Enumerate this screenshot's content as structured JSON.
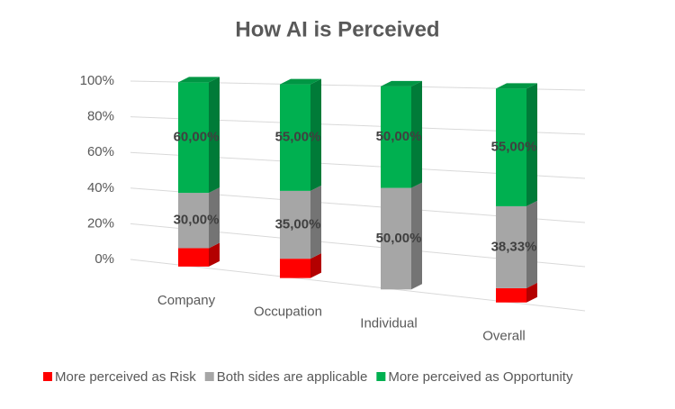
{
  "chart_data": {
    "type": "bar3d_stacked",
    "title": "How AI is Perceived",
    "categories": [
      "Company",
      "Occupation",
      "Individual",
      "Overall"
    ],
    "series": [
      {
        "name": "More perceived as Risk",
        "color": "#ff0000",
        "values": [
          10,
          10,
          0,
          6.67
        ]
      },
      {
        "name": "Both sides are applicable",
        "color": "#a6a6a6",
        "values": [
          30,
          35,
          50,
          38.33
        ],
        "value_labels": [
          "30,00%",
          "35,00%",
          "50,00%",
          "38,33%"
        ]
      },
      {
        "name": "More perceived as Opportunity",
        "color": "#00b050",
        "values": [
          60,
          55,
          50,
          55
        ],
        "value_labels": [
          "60,00%",
          "55,00%",
          "50,00%",
          "55,00%"
        ]
      }
    ],
    "ylim": [
      0,
      100
    ],
    "yticks": [
      {
        "value": 0,
        "label": "0%"
      },
      {
        "value": 20,
        "label": "20%"
      },
      {
        "value": 40,
        "label": "40%"
      },
      {
        "value": 60,
        "label": "60%"
      },
      {
        "value": 80,
        "label": "80%"
      },
      {
        "value": 100,
        "label": "100%"
      }
    ],
    "grid": true,
    "legend": "bottom"
  }
}
